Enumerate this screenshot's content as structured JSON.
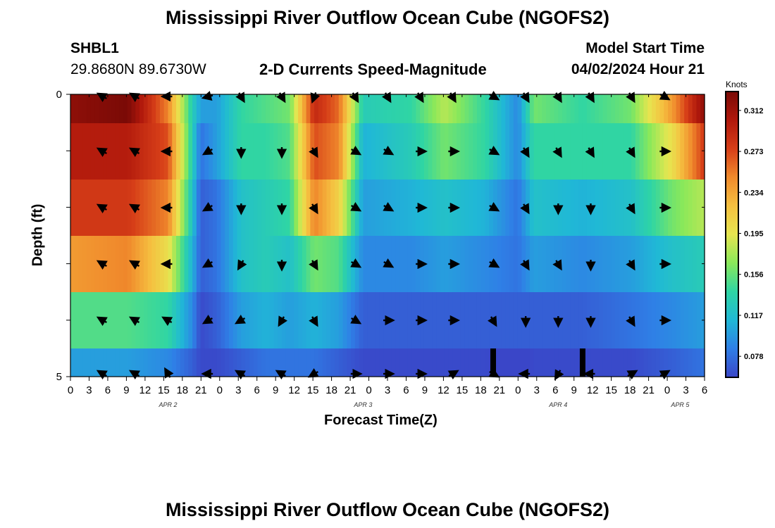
{
  "header": {
    "title": "Mississippi River Outflow Ocean Cube (NGOFS2)",
    "station_id": "SHBL1",
    "station_coords": "29.8680N  89.6730W",
    "plot_subtitle": "2-D Currents Speed-Magnitude",
    "model_start_label": "Model Start Time",
    "model_start_value": "04/02/2024 Hour 21",
    "bottom_title": "Mississippi River Outflow Ocean Cube (NGOFS2)"
  },
  "chart_data": {
    "type": "heatmap",
    "title": "2-D Currents Speed-Magnitude",
    "xlabel": "Forecast Time(Z)",
    "ylabel": "Depth (ft)",
    "x_ticks": [
      "0",
      "3",
      "6",
      "9",
      "12",
      "15",
      "18",
      "21",
      "0",
      "3",
      "6",
      "9",
      "12",
      "15",
      "18",
      "21",
      "0",
      "3",
      "6",
      "9",
      "12",
      "15",
      "18",
      "21",
      "0",
      "3",
      "6",
      "9",
      "12",
      "15",
      "18",
      "21",
      "0",
      "3",
      "6"
    ],
    "y_ticks": [
      "0",
      "5"
    ],
    "ylim": [
      0,
      5
    ],
    "date_labels": [
      {
        "label": "APR 2",
        "hour": 12
      },
      {
        "label": "APR 3",
        "hour": 36
      },
      {
        "label": "APR 4",
        "hour": 60
      },
      {
        "label": "APR 5",
        "hour": 75
      }
    ],
    "colorbar": {
      "label": "Knots",
      "ticks": [
        "0.312",
        "0.273",
        "0.234",
        "0.195",
        "0.156",
        "0.117",
        "0.078"
      ],
      "tick_values": [
        0.312,
        0.273,
        0.234,
        0.195,
        0.156,
        0.117,
        0.078
      ],
      "range": [
        0.058,
        0.33
      ],
      "colors": [
        "#3a46c8",
        "#2f7fe6",
        "#20b8d6",
        "#2fd5a4",
        "#8ae85a",
        "#e6e650",
        "#f5c040",
        "#f08a2c",
        "#d63e18",
        "#b0180c",
        "#7a0a06"
      ]
    },
    "hours_range": [
      0,
      78
    ],
    "layer_count": 6,
    "speed_keyframes": [
      {
        "hour": 0,
        "layers": [
          0.32,
          0.3,
          0.28,
          0.24,
          0.15,
          0.1
        ]
      },
      {
        "hour": 7,
        "layers": [
          0.33,
          0.3,
          0.28,
          0.25,
          0.15,
          0.1
        ]
      },
      {
        "hour": 12,
        "layers": [
          0.25,
          0.27,
          0.25,
          0.2,
          0.14,
          0.09
        ]
      },
      {
        "hour": 15,
        "layers": [
          0.13,
          0.13,
          0.12,
          0.11,
          0.09,
          0.07
        ]
      },
      {
        "hour": 16,
        "layers": [
          0.1,
          0.08,
          0.07,
          0.07,
          0.06,
          0.06
        ]
      },
      {
        "hour": 18,
        "layers": [
          0.1,
          0.1,
          0.08,
          0.08,
          0.07,
          0.06
        ]
      },
      {
        "hour": 21,
        "layers": [
          0.14,
          0.14,
          0.12,
          0.12,
          0.1,
          0.07
        ]
      },
      {
        "hour": 24,
        "layers": [
          0.15,
          0.14,
          0.13,
          0.13,
          0.11,
          0.08
        ]
      },
      {
        "hour": 27,
        "layers": [
          0.16,
          0.15,
          0.14,
          0.12,
          0.1,
          0.08
        ]
      },
      {
        "hour": 30,
        "layers": [
          0.29,
          0.27,
          0.25,
          0.16,
          0.11,
          0.08
        ]
      },
      {
        "hour": 33,
        "layers": [
          0.26,
          0.25,
          0.21,
          0.15,
          0.1,
          0.07
        ]
      },
      {
        "hour": 36,
        "layers": [
          0.13,
          0.11,
          0.1,
          0.09,
          0.07,
          0.06
        ]
      },
      {
        "hour": 42,
        "layers": [
          0.14,
          0.13,
          0.11,
          0.09,
          0.07,
          0.06
        ]
      },
      {
        "hour": 46,
        "layers": [
          0.18,
          0.16,
          0.12,
          0.1,
          0.07,
          0.06
        ]
      },
      {
        "hour": 51,
        "layers": [
          0.14,
          0.14,
          0.11,
          0.09,
          0.07,
          0.06
        ]
      },
      {
        "hour": 55,
        "layers": [
          0.09,
          0.09,
          0.08,
          0.08,
          0.07,
          0.05
        ]
      },
      {
        "hour": 57,
        "layers": [
          0.16,
          0.14,
          0.12,
          0.1,
          0.07,
          0.06
        ]
      },
      {
        "hour": 63,
        "layers": [
          0.14,
          0.14,
          0.11,
          0.09,
          0.07,
          0.06
        ]
      },
      {
        "hour": 69,
        "layers": [
          0.16,
          0.14,
          0.12,
          0.1,
          0.08,
          0.06
        ]
      },
      {
        "hour": 74,
        "layers": [
          0.24,
          0.2,
          0.16,
          0.12,
          0.09,
          0.07
        ]
      },
      {
        "hour": 78,
        "layers": [
          0.32,
          0.28,
          0.18,
          0.13,
          0.1,
          0.08
        ]
      }
    ],
    "missing_data_hours": [
      52,
      63
    ],
    "vector_hours": [
      4,
      8,
      12,
      17,
      21,
      26,
      30,
      35,
      39,
      43,
      47,
      52,
      56,
      60,
      64,
      69,
      73
    ],
    "vector_directions_deg": [
      [
        300,
        300,
        270,
        255,
        150,
        150,
        200,
        150,
        150,
        150,
        150,
        120,
        150,
        150,
        150,
        150,
        120
      ],
      [
        300,
        300,
        270,
        240,
        180,
        180,
        150,
        120,
        120,
        90,
        90,
        120,
        150,
        150,
        150,
        150,
        90
      ],
      [
        300,
        300,
        270,
        240,
        180,
        180,
        150,
        120,
        120,
        90,
        90,
        120,
        150,
        180,
        180,
        150,
        90
      ],
      [
        300,
        300,
        270,
        240,
        210,
        180,
        150,
        120,
        120,
        90,
        90,
        120,
        150,
        150,
        180,
        150,
        90
      ],
      [
        300,
        300,
        300,
        240,
        240,
        210,
        150,
        120,
        90,
        90,
        90,
        150,
        180,
        180,
        180,
        150,
        90
      ],
      [
        300,
        300,
        330,
        270,
        300,
        300,
        240,
        90,
        90,
        90,
        60,
        120,
        270,
        210,
        270,
        60,
        60
      ]
    ]
  }
}
